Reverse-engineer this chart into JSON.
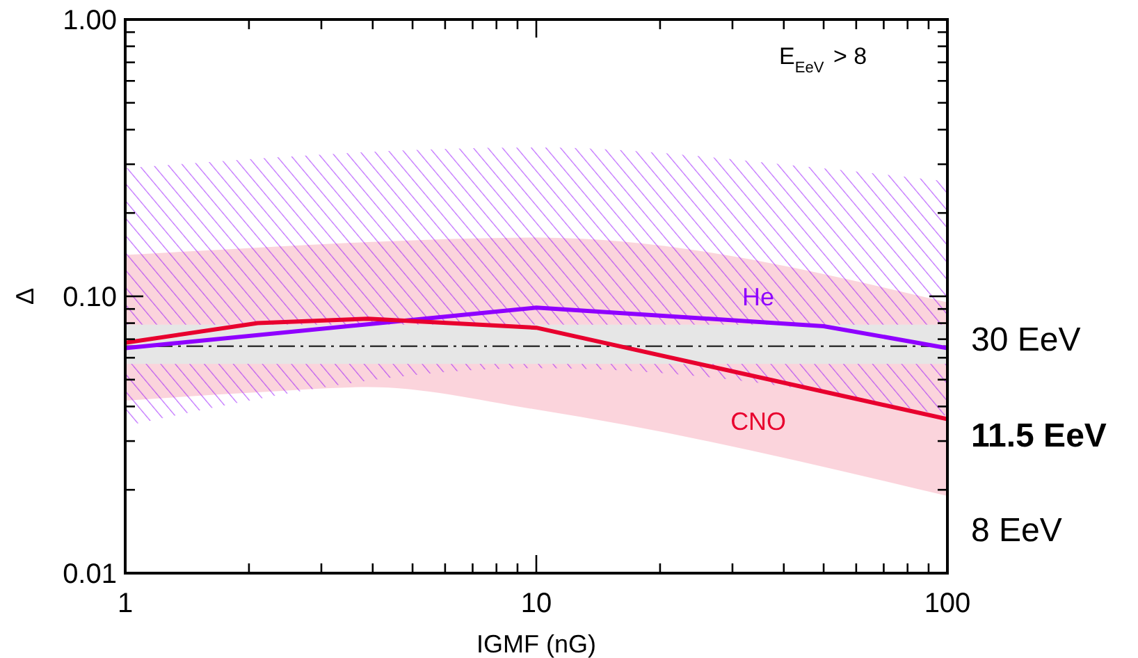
{
  "chart_data": {
    "type": "line",
    "xlabel": "IGMF (nG)",
    "ylabel": "Δ",
    "log": "xy",
    "xlim": [
      1,
      100
    ],
    "ylim": [
      0.01,
      1
    ],
    "xticks": [
      1,
      {
        "value": 2,
        "label": null
      },
      {
        "value": 3,
        "label": null
      },
      {
        "value": 4,
        "label": null
      },
      {
        "value": 5,
        "label": null
      },
      {
        "value": 6,
        "label": null
      },
      {
        "value": 7,
        "label": null
      },
      {
        "value": 8,
        "label": null
      },
      {
        "value": 9,
        "label": null
      },
      10,
      {
        "value": 20,
        "label": null
      },
      {
        "value": 30,
        "label": null
      },
      {
        "value": 40,
        "label": null
      },
      {
        "value": 50,
        "label": null
      },
      {
        "value": 60,
        "label": null
      },
      {
        "value": 70,
        "label": null
      },
      {
        "value": 80,
        "label": null
      },
      {
        "value": 90,
        "label": null
      },
      100
    ],
    "yticks": [
      {
        "value": 0.01,
        "label": "0.01"
      },
      {
        "value": 0.02,
        "label": null
      },
      {
        "value": 0.03,
        "label": null
      },
      {
        "value": 0.04,
        "label": null
      },
      {
        "value": 0.05,
        "label": null
      },
      {
        "value": 0.06,
        "label": null
      },
      {
        "value": 0.07,
        "label": null
      },
      {
        "value": 0.08,
        "label": null
      },
      {
        "value": 0.09,
        "label": null
      },
      {
        "value": 0.1,
        "label": "0.10"
      },
      {
        "value": 0.2,
        "label": null
      },
      {
        "value": 0.3,
        "label": null
      },
      {
        "value": 0.4,
        "label": null
      },
      {
        "value": 0.5,
        "label": null
      },
      {
        "value": 0.6,
        "label": null
      },
      {
        "value": 0.7,
        "label": null
      },
      {
        "value": 0.8,
        "label": null
      },
      {
        "value": 0.9,
        "label": null
      },
      {
        "value": 1,
        "label": "1.00"
      }
    ],
    "line_style": "solid",
    "series": [
      {
        "name": "He",
        "color": "#8f00ff",
        "x": [
          1,
          10,
          50,
          100
        ],
        "values": [
          0.065,
          0.091,
          0.078,
          0.065
        ],
        "lower": [
          0.034,
          0.055,
          0.045,
          0.037
        ],
        "upper": [
          0.29,
          0.345,
          0.29,
          0.26
        ]
      },
      {
        "name": "CNO",
        "color": "#e8002e",
        "x": [
          1,
          2.1,
          3.9,
          10,
          100
        ],
        "values": [
          0.068,
          0.08,
          0.083,
          0.077,
          0.036
        ],
        "lower": [
          0.042,
          0.045,
          0.047,
          0.039,
          0.019
        ],
        "upper": [
          0.141,
          0.15,
          0.157,
          0.163,
          0.095
        ]
      }
    ],
    "bands": [
      {
        "axis": "y",
        "from": 0.057,
        "to": 0.079,
        "color": "#e6e6e6"
      }
    ],
    "ref_lines": [
      {
        "axis": "y",
        "value": 0.066,
        "color": "#333333"
      }
    ],
    "annotations": [
      "E$_{EeV}$ > 8",
      "30 EeV",
      "11.5 EeV",
      "8 EeV"
    ]
  }
}
